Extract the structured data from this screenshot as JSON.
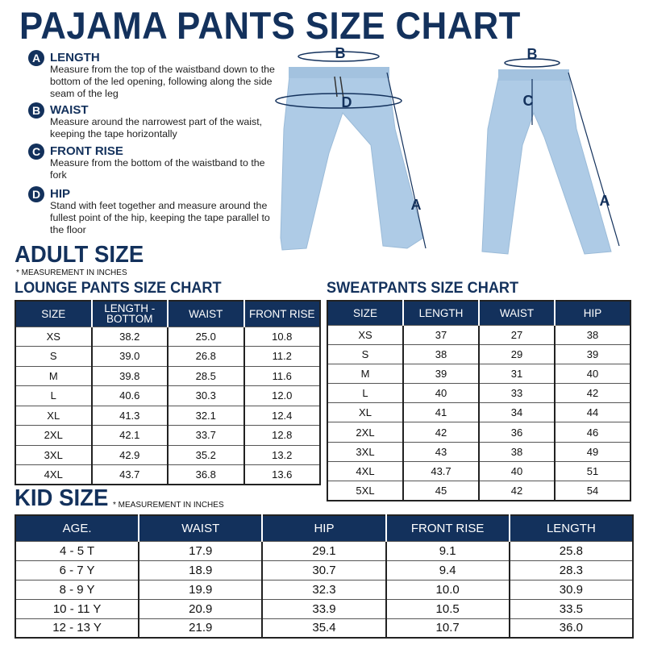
{
  "title": "PAJAMA PANTS SIZE CHART",
  "legend": [
    {
      "letter": "A",
      "head": "LENGTH",
      "desc": "Measure from the top of the waistband down to the bottom of the led opening, following along the side seam of the leg"
    },
    {
      "letter": "B",
      "head": "WAIST",
      "desc": "Measure around the narrowest part of the waist, keeping the tape horizontally"
    },
    {
      "letter": "C",
      "head": "FRONT RISE",
      "desc": "Measure from the bottom of the waistband to the fork"
    },
    {
      "letter": "D",
      "head": "HIP",
      "desc": "Stand with feet together and measure around the fullest point of the hip, keeping the tape parallel to the floor"
    }
  ],
  "diagram": {
    "labels": [
      "A",
      "B",
      "C",
      "D"
    ],
    "pant_color": "#aecbe6",
    "accent": "#13315c"
  },
  "adult": {
    "heading": "ADULT SIZE",
    "note": "* MEASUREMENT IN INCHES"
  },
  "lounge": {
    "title": "LOUNGE PANTS SIZE CHART",
    "headers": [
      "SIZE",
      "LENGTH - BOTTOM",
      "WAIST",
      "FRONT RISE"
    ],
    "rows": [
      [
        "XS",
        "38.2",
        "25.0",
        "10.8"
      ],
      [
        "S",
        "39.0",
        "26.8",
        "11.2"
      ],
      [
        "M",
        "39.8",
        "28.5",
        "11.6"
      ],
      [
        "L",
        "40.6",
        "30.3",
        "12.0"
      ],
      [
        "XL",
        "41.3",
        "32.1",
        "12.4"
      ],
      [
        "2XL",
        "42.1",
        "33.7",
        "12.8"
      ],
      [
        "3XL",
        "42.9",
        "35.2",
        "13.2"
      ],
      [
        "4XL",
        "43.7",
        "36.8",
        "13.6"
      ]
    ]
  },
  "sweat": {
    "title": "SWEATPANTS SIZE CHART",
    "headers": [
      "SIZE",
      "LENGTH",
      "WAIST",
      "HIP"
    ],
    "rows": [
      [
        "XS",
        "37",
        "27",
        "38"
      ],
      [
        "S",
        "38",
        "29",
        "39"
      ],
      [
        "M",
        "39",
        "31",
        "40"
      ],
      [
        "L",
        "40",
        "33",
        "42"
      ],
      [
        "XL",
        "41",
        "34",
        "44"
      ],
      [
        "2XL",
        "42",
        "36",
        "46"
      ],
      [
        "3XL",
        "43",
        "38",
        "49"
      ],
      [
        "4XL",
        "43.7",
        "40",
        "51"
      ],
      [
        "5XL",
        "45",
        "42",
        "54"
      ]
    ]
  },
  "kid": {
    "heading": "KID SIZE",
    "note": "* MEASUREMENT IN INCHES",
    "headers": [
      "AGE.",
      "WAIST",
      "HIP",
      "FRONT RISE",
      "LENGTH"
    ],
    "rows": [
      [
        "4 - 5 T",
        "17.9",
        "29.1",
        "9.1",
        "25.8"
      ],
      [
        "6 - 7 Y",
        "18.9",
        "30.7",
        "9.4",
        "28.3"
      ],
      [
        "8 - 9 Y",
        "19.9",
        "32.3",
        "10.0",
        "30.9"
      ],
      [
        "10 - 11 Y",
        "20.9",
        "33.9",
        "10.5",
        "33.5"
      ],
      [
        "12 - 13 Y",
        "21.9",
        "35.4",
        "10.7",
        "36.0"
      ]
    ]
  },
  "colors": {
    "navy": "#13315c"
  }
}
